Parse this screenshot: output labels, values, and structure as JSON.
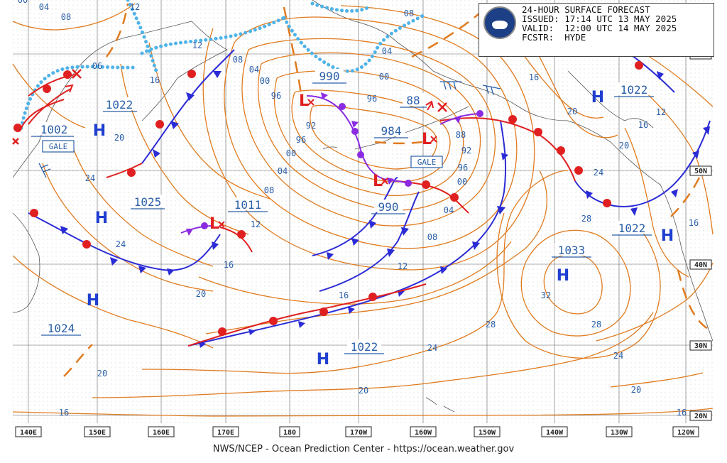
{
  "header": {
    "line1": "24-HOUR SURFACE FORECAST",
    "line2": "ISSUED: 17:14 UTC 13 MAY 2025",
    "line3": "VALID:  12:00 UTC 14 MAY 2025",
    "line4": "FCSTR:  HYDE",
    "logo_icon": "noaa-logo-icon"
  },
  "credit": "NWS/NCEP - Ocean Prediction Center - https://ocean.weather.gov",
  "axes": {
    "longitudes": [
      "140E",
      "150E",
      "160E",
      "170E",
      "180",
      "170W",
      "160W",
      "150W",
      "140W",
      "130W",
      "120W"
    ],
    "latitudes": [
      "60N",
      "50N",
      "40N",
      "30N",
      "20N"
    ]
  },
  "pressure_centers": [
    {
      "type": "H",
      "value": "1022"
    },
    {
      "type": "H",
      "value": "1025"
    },
    {
      "type": "H",
      "value": "1024"
    },
    {
      "type": "H",
      "value": "1022"
    },
    {
      "type": "H",
      "value": "1033"
    },
    {
      "type": "H",
      "value": "1022"
    },
    {
      "type": "H",
      "value": "1022"
    },
    {
      "type": "L",
      "value": "1002"
    },
    {
      "type": "L",
      "value": "1011"
    },
    {
      "type": "L",
      "value": "990"
    },
    {
      "type": "L",
      "value": "990"
    },
    {
      "type": "L",
      "value": "984"
    },
    {
      "type": "L",
      "value": "88"
    }
  ],
  "warnings": [
    "GALE",
    "GALE"
  ],
  "isobar_labels": [
    "00",
    "04",
    "08",
    "12",
    "16",
    "20",
    "24",
    "28",
    "32",
    "96",
    "92",
    "88",
    "06"
  ],
  "colors": {
    "isobar": "#e07b1f",
    "label": "#2a5fa8",
    "cold_front": "#2b2bd6",
    "warm_front": "#e02020",
    "occluded_front": "#8a2be2",
    "stationary_dots": "#4fb3e8",
    "high": "#1f3fd0",
    "low": "#e02020"
  }
}
